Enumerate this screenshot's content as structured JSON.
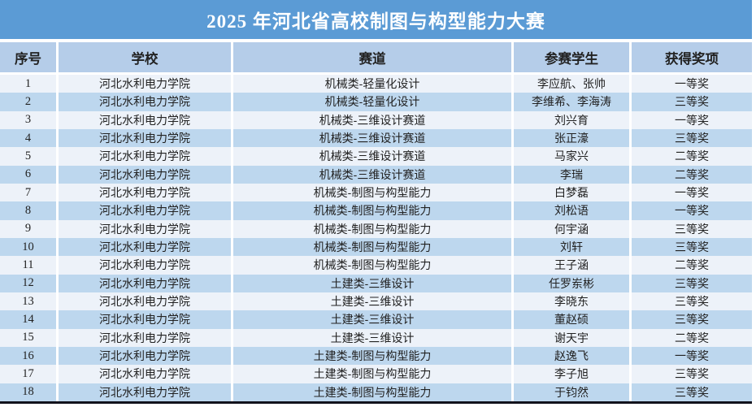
{
  "title": "2025 年河北省高校制图与构型能力大赛",
  "colors": {
    "title_bg": "#5b9bd5",
    "title_text": "#ffffff",
    "header_bg": "#b5cde9",
    "row_odd_bg": "#edf2f9",
    "row_even_bg": "#bdd7ee",
    "separator": "#ffffff",
    "bottom_border": "#12121c",
    "body_text": "#222222"
  },
  "table": {
    "headers": [
      "序号",
      "学校",
      "赛道",
      "参赛学生",
      "获得奖项"
    ],
    "rows": [
      {
        "no": "1",
        "school": "河北水利电力学院",
        "track": "机械类-轻量化设计",
        "students": "李应航、张帅",
        "award": "一等奖"
      },
      {
        "no": "2",
        "school": "河北水利电力学院",
        "track": "机械类-轻量化设计",
        "students": "李维希、李海涛",
        "award": "三等奖"
      },
      {
        "no": "3",
        "school": "河北水利电力学院",
        "track": "机械类-三维设计赛道",
        "students": "刘兴育",
        "award": "一等奖"
      },
      {
        "no": "4",
        "school": "河北水利电力学院",
        "track": "机械类-三维设计赛道",
        "students": "张正濠",
        "award": "三等奖"
      },
      {
        "no": "5",
        "school": "河北水利电力学院",
        "track": "机械类-三维设计赛道",
        "students": "马家兴",
        "award": "二等奖"
      },
      {
        "no": "6",
        "school": "河北水利电力学院",
        "track": "机械类-三维设计赛道",
        "students": "李瑞",
        "award": "二等奖"
      },
      {
        "no": "7",
        "school": "河北水利电力学院",
        "track": "机械类-制图与构型能力",
        "students": "白梦磊",
        "award": "一等奖"
      },
      {
        "no": "8",
        "school": "河北水利电力学院",
        "track": "机械类-制图与构型能力",
        "students": "刘松语",
        "award": "一等奖"
      },
      {
        "no": "9",
        "school": "河北水利电力学院",
        "track": "机械类-制图与构型能力",
        "students": "何宇涵",
        "award": "三等奖"
      },
      {
        "no": "10",
        "school": "河北水利电力学院",
        "track": "机械类-制图与构型能力",
        "students": "刘轩",
        "award": "三等奖"
      },
      {
        "no": "11",
        "school": "河北水利电力学院",
        "track": "机械类-制图与构型能力",
        "students": "王子涵",
        "award": "二等奖"
      },
      {
        "no": "12",
        "school": "河北水利电力学院",
        "track": "土建类-三维设计",
        "students": "任罗岽彬",
        "award": "三等奖"
      },
      {
        "no": "13",
        "school": "河北水利电力学院",
        "track": "土建类-三维设计",
        "students": "李晓东",
        "award": "三等奖"
      },
      {
        "no": "14",
        "school": "河北水利电力学院",
        "track": "土建类-三维设计",
        "students": "董赵硕",
        "award": "三等奖"
      },
      {
        "no": "15",
        "school": "河北水利电力学院",
        "track": "土建类-三维设计",
        "students": "谢天宇",
        "award": "二等奖"
      },
      {
        "no": "16",
        "school": "河北水利电力学院",
        "track": "土建类-制图与构型能力",
        "students": "赵逸飞",
        "award": "一等奖"
      },
      {
        "no": "17",
        "school": "河北水利电力学院",
        "track": "土建类-制图与构型能力",
        "students": "李子旭",
        "award": "三等奖"
      },
      {
        "no": "18",
        "school": "河北水利电力学院",
        "track": "土建类-制图与构型能力",
        "students": "于钧然",
        "award": "三等奖"
      }
    ]
  }
}
